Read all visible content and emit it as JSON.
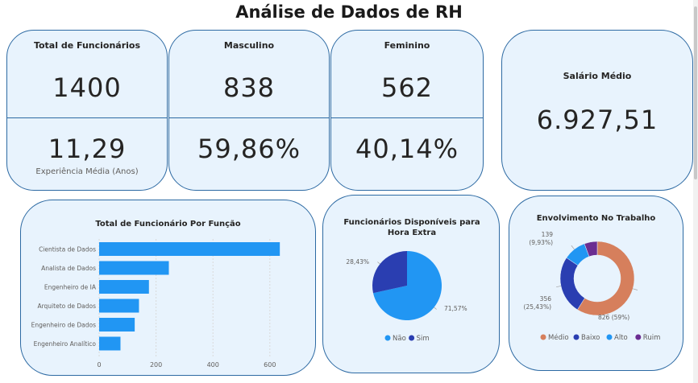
{
  "page": {
    "title": "Análise de Dados de RH"
  },
  "kpis": {
    "total": {
      "label": "Total de Funcionários",
      "value": "1400",
      "sub_value": "11,29",
      "sub_label": "Experiência Média (Anos)"
    },
    "masculino": {
      "label": "Masculino",
      "value": "838",
      "sub_value": "59,86%"
    },
    "feminino": {
      "label": "Feminino",
      "value": "562",
      "sub_value": "40,14%"
    },
    "salario": {
      "label": "Salário Médio",
      "value": "6.927,51"
    }
  },
  "charts": {
    "funcao": {
      "chart_data": {
        "type": "bar",
        "title": "Total de Funcionário Por Função",
        "categories": [
          "Cientista de Dados",
          "Analista de Dados",
          "Engenheiro de IA",
          "Arquiteto de Dados",
          "Engenheiro de Dados",
          "Engenheiro Analítico"
        ],
        "values": [
          635,
          245,
          175,
          140,
          125,
          75
        ],
        "xlim": [
          0,
          660
        ],
        "xticks": [
          "0",
          "200",
          "400",
          "600"
        ],
        "xtick_values": [
          0,
          200,
          400,
          600
        ],
        "grid": true,
        "color": "#2196f3"
      }
    },
    "hora_extra": {
      "chart_data": {
        "type": "pie",
        "title": "Funcionários Disponíveis para Hora Extra",
        "slices": [
          {
            "name": "Não",
            "value": 71.57,
            "label": "71,57%",
            "color": "#2196f3"
          },
          {
            "name": "Sim",
            "value": 28.43,
            "label": "28,43%",
            "color": "#2a3eb1"
          }
        ],
        "legend": "bottom"
      }
    },
    "envolvimento": {
      "chart_data": {
        "type": "pie",
        "title": "Envolvimento No Trabalho",
        "donut": true,
        "slices": [
          {
            "name": "Médio",
            "value": 826,
            "label": "826 (59%)",
            "color": "#d67f5c"
          },
          {
            "name": "Baixo",
            "value": 356,
            "label": "356 (25,43%)",
            "color": "#2a3eb1"
          },
          {
            "name": "Alto",
            "value": 139,
            "label": "139 (9,93%)",
            "color": "#2196f3"
          },
          {
            "name": "Ruim",
            "value": 79,
            "label": "",
            "color": "#6b2d91"
          }
        ],
        "legend": "bottom"
      }
    }
  }
}
